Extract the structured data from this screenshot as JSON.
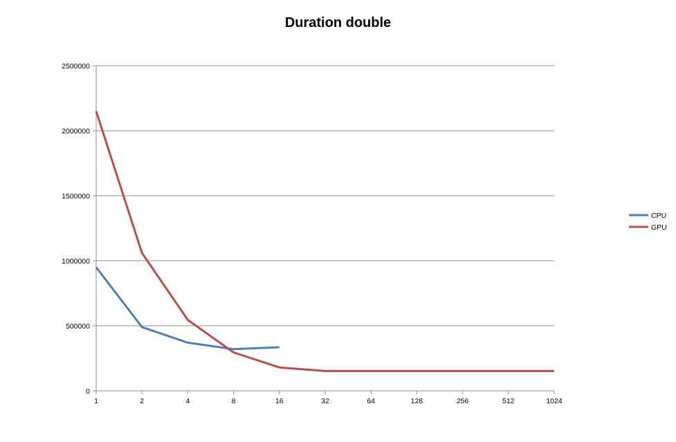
{
  "chart_data": {
    "type": "line",
    "title": "Duration double",
    "xlabel": "",
    "ylabel": "",
    "categories": [
      "1",
      "2",
      "4",
      "8",
      "16",
      "32",
      "64",
      "128",
      "256",
      "512",
      "1024"
    ],
    "y_ticks": [
      "0",
      "500000",
      "1000000",
      "1500000",
      "2000000",
      "2500000"
    ],
    "ylim": [
      0,
      2500000
    ],
    "grid": "horizontal",
    "legend_position": "right",
    "series": [
      {
        "name": "CPU",
        "color": "#4a7ebb",
        "values": [
          950000,
          490000,
          370000,
          320000,
          335000,
          null,
          null,
          null,
          null,
          null,
          null
        ]
      },
      {
        "name": "GPU",
        "color": "#be4b48",
        "values": [
          2150000,
          1060000,
          545000,
          295000,
          180000,
          152000,
          152000,
          152000,
          152000,
          152000,
          152000
        ]
      }
    ]
  }
}
